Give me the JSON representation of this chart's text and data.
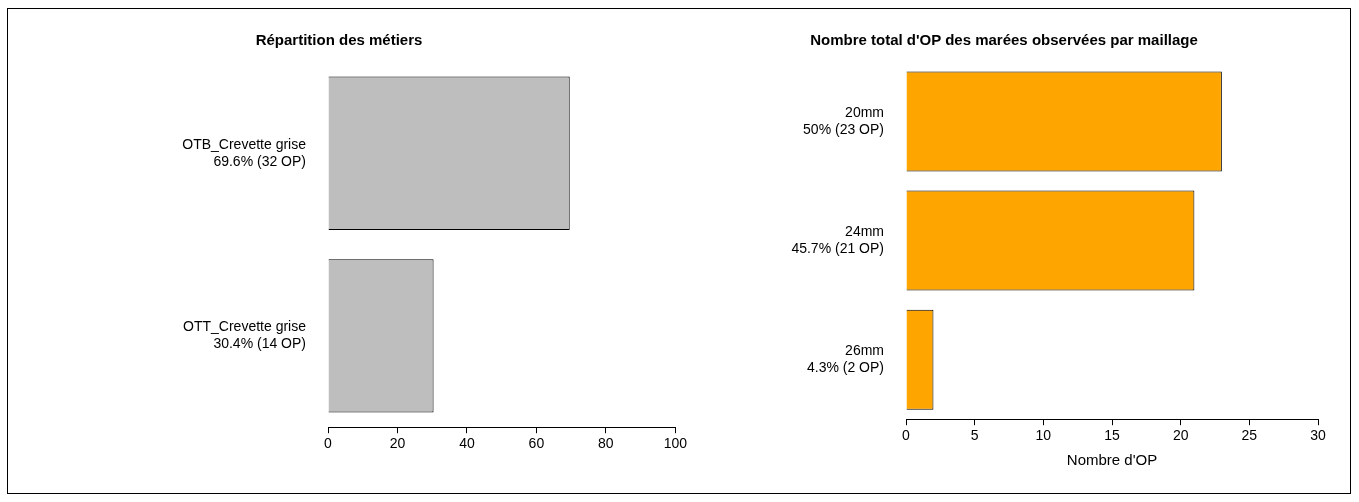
{
  "chart_data": [
    {
      "type": "bar",
      "orientation": "horizontal",
      "title": "Répartition des métiers",
      "categories": [
        "OTB_Crevette grise\n69.6% (32 OP)",
        "OTT_Crevette grise\n30.4% (14 OP)"
      ],
      "values": [
        69.6,
        30.4
      ],
      "color": "#bebebe",
      "xlim": [
        0,
        100
      ],
      "xticks": [
        0,
        20,
        40,
        60,
        80,
        100
      ],
      "grid": false,
      "legend": false
    },
    {
      "type": "bar",
      "orientation": "horizontal",
      "title": "Nombre total d'OP des marées observées par maillage",
      "xlabel": "Nombre d'OP",
      "categories": [
        "20mm\n50% (23 OP)",
        "24mm\n45.7% (21 OP)",
        "26mm\n4.3% (2 OP)"
      ],
      "values": [
        23,
        21,
        2
      ],
      "color": "#ffa500",
      "xlim": [
        0,
        30
      ],
      "xticks": [
        0,
        5,
        10,
        15,
        20,
        25,
        30
      ],
      "grid": false,
      "legend": false
    }
  ]
}
